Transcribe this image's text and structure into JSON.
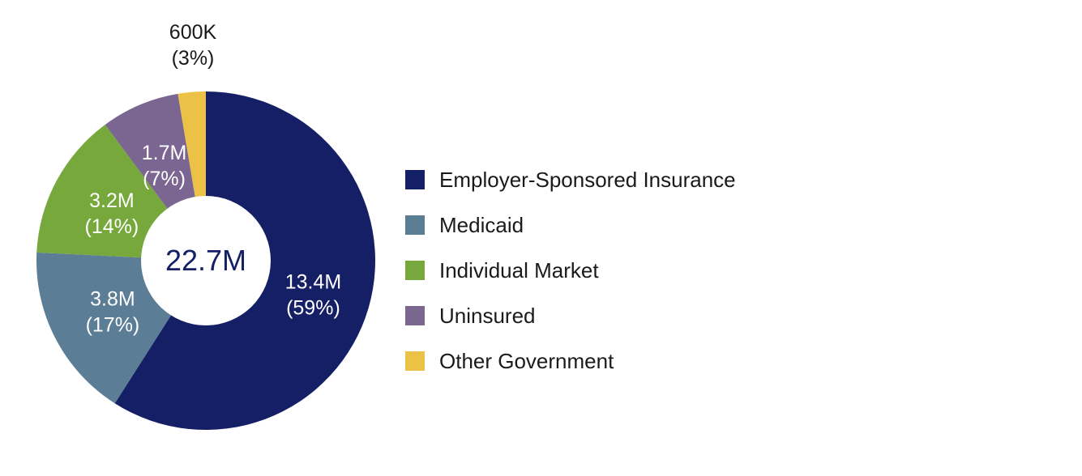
{
  "chart_data": {
    "type": "pie",
    "style": "donut",
    "total_label": "22.7M",
    "slices": [
      {
        "name": "Employer-Sponsored Insurance",
        "value": 13.4,
        "value_label": "13.4M",
        "percent": 59,
        "percent_label": "(59%)",
        "color": "#141f66",
        "label_color": "#ffffff"
      },
      {
        "name": "Medicaid",
        "value": 3.8,
        "value_label": "3.8M",
        "percent": 17,
        "percent_label": "(17%)",
        "color": "#5b7d96",
        "label_color": "#ffffff"
      },
      {
        "name": "Individual Market",
        "value": 3.2,
        "value_label": "3.2M",
        "percent": 14,
        "percent_label": "(14%)",
        "color": "#76a83c",
        "label_color": "#ffffff"
      },
      {
        "name": "Uninsured",
        "value": 1.7,
        "value_label": "1.7M",
        "percent": 7,
        "percent_label": "(7%)",
        "color": "#7a6690",
        "label_color": "#ffffff"
      },
      {
        "name": "Other Government",
        "value": 0.6,
        "value_label": "600K",
        "percent": 3,
        "percent_label": "(3%)",
        "color": "#ecc246",
        "label_color": "#1a1a1a"
      }
    ],
    "legend_position": "right",
    "center_color": "#141f66"
  }
}
